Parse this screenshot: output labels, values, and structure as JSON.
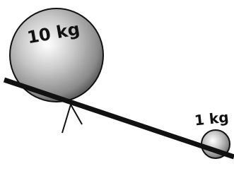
{
  "heavy_ball": {
    "label": "10 kg"
  },
  "light_ball": {
    "label": "1 kg"
  }
}
